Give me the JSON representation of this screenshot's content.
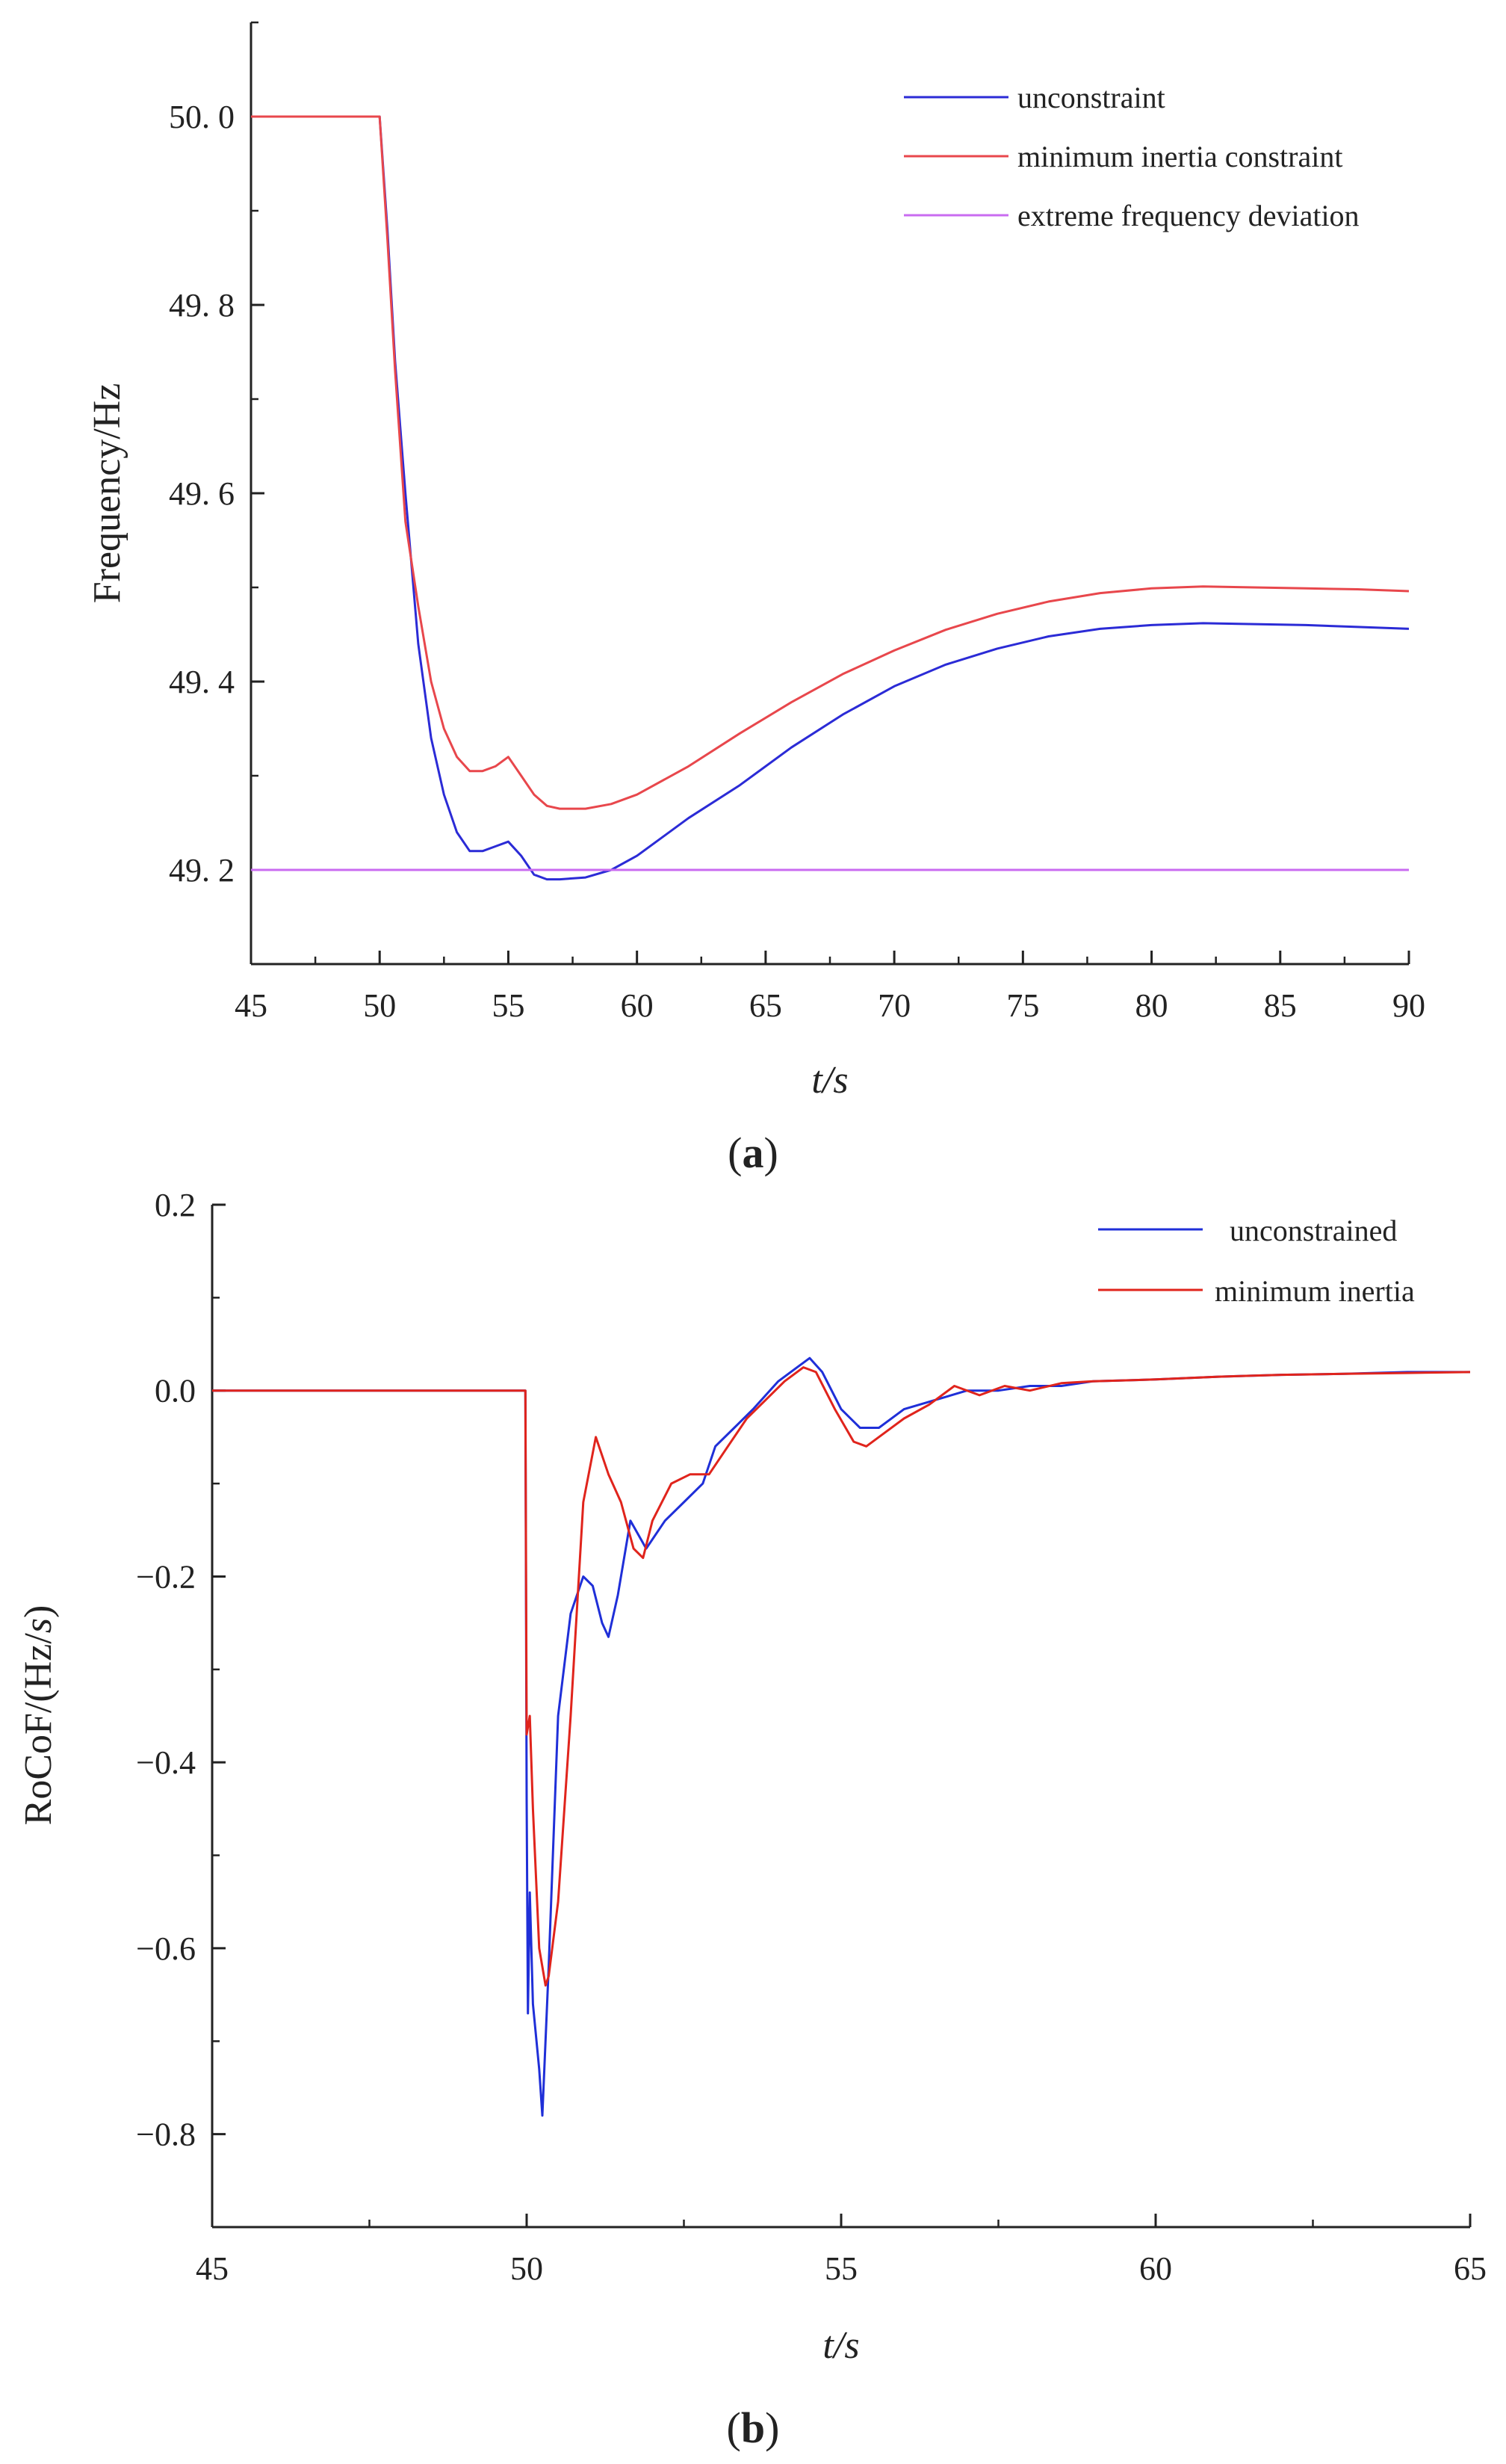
{
  "chart_data": [
    {
      "type": "line",
      "caption": "(a)",
      "caption_letter": "a",
      "xlabel": "t/s",
      "ylabel": "Frequency/Hz",
      "xlim": [
        45,
        90
      ],
      "ylim": [
        49.1,
        50.1
      ],
      "xticks": [
        45,
        50,
        55,
        60,
        65,
        70,
        75,
        80,
        85,
        90
      ],
      "xtick_labels": [
        "45",
        "50",
        "55",
        "60",
        "65",
        "70",
        "75",
        "80",
        "85",
        "90"
      ],
      "yticks": [
        49.2,
        49.4,
        49.6,
        49.8,
        50.0
      ],
      "ytick_labels": [
        "49. 2",
        "49. 4",
        "49. 6",
        "49. 8",
        "50. 0"
      ],
      "legend_position": "top-right",
      "series": [
        {
          "name": "unconstraint",
          "color": "#2b2bd6",
          "x": [
            45,
            50,
            50.3,
            50.6,
            51,
            51.5,
            52,
            52.5,
            53,
            53.5,
            54,
            54.5,
            55,
            55.5,
            56,
            56.5,
            57,
            58,
            59,
            60,
            62,
            64,
            66,
            68,
            70,
            72,
            74,
            76,
            78,
            80,
            82,
            84,
            86,
            88,
            90
          ],
          "y": [
            50.0,
            50.0,
            49.88,
            49.74,
            49.6,
            49.44,
            49.34,
            49.28,
            49.24,
            49.22,
            49.22,
            49.225,
            49.23,
            49.215,
            49.195,
            49.19,
            49.19,
            49.192,
            49.2,
            49.215,
            49.255,
            49.29,
            49.33,
            49.365,
            49.395,
            49.418,
            49.435,
            49.448,
            49.456,
            49.46,
            49.462,
            49.461,
            49.46,
            49.458,
            49.456
          ]
        },
        {
          "name": "minimum inertia constraint",
          "color": "#e8474c",
          "x": [
            45,
            50,
            50.3,
            50.6,
            51,
            51.5,
            52,
            52.5,
            53,
            53.5,
            54,
            54.5,
            55,
            55.5,
            56,
            56.5,
            57,
            58,
            59,
            60,
            62,
            64,
            66,
            68,
            70,
            72,
            74,
            76,
            78,
            80,
            82,
            84,
            86,
            88,
            90
          ],
          "y": [
            50.0,
            50.0,
            49.87,
            49.73,
            49.57,
            49.48,
            49.4,
            49.35,
            49.32,
            49.305,
            49.305,
            49.31,
            49.32,
            49.3,
            49.28,
            49.268,
            49.265,
            49.265,
            49.27,
            49.28,
            49.31,
            49.345,
            49.378,
            49.408,
            49.433,
            49.455,
            49.472,
            49.485,
            49.494,
            49.499,
            49.501,
            49.5,
            49.499,
            49.498,
            49.496
          ]
        },
        {
          "name": "extreme frequency deviation",
          "color": "#c96bf0",
          "x": [
            45,
            90
          ],
          "y": [
            49.2,
            49.2
          ]
        }
      ]
    },
    {
      "type": "line",
      "caption": "(b)",
      "caption_letter": "b",
      "xlabel": "t/s",
      "ylabel": "RoCoF/(Hz/s)",
      "ylabel_prefix": "RoCoF/(Hz/",
      "ylabel_var": "s",
      "ylabel_suffix": ")",
      "xlim": [
        45,
        65
      ],
      "ylim": [
        -0.9,
        0.2
      ],
      "xticks": [
        45,
        50,
        55,
        60,
        65
      ],
      "xtick_labels": [
        "45",
        "50",
        "55",
        "60",
        "65"
      ],
      "yticks": [
        -0.8,
        -0.6,
        -0.4,
        -0.2,
        0.0,
        0.2
      ],
      "ytick_labels": [
        "−0.8",
        "−0.6",
        "−0.4",
        "−0.2",
        "0.0",
        "0.2"
      ],
      "legend_position": "top-right",
      "series": [
        {
          "name": "unconstrained",
          "color": "#1f2fd8",
          "x": [
            45,
            49.98,
            50.0,
            50.02,
            50.05,
            50.1,
            50.2,
            50.25,
            50.35,
            50.5,
            50.7,
            50.9,
            51.05,
            51.2,
            51.3,
            51.45,
            51.65,
            51.9,
            52.2,
            52.5,
            52.8,
            53.0,
            53.3,
            53.6,
            54.0,
            54.3,
            54.5,
            54.7,
            55.0,
            55.3,
            55.6,
            56.0,
            56.5,
            57.0,
            57.5,
            58.0,
            58.5,
            59.0,
            60.0,
            61.0,
            62.0,
            63.0,
            64.0,
            65.0
          ],
          "y": [
            0.0,
            0.0,
            -0.44,
            -0.67,
            -0.54,
            -0.66,
            -0.73,
            -0.78,
            -0.62,
            -0.35,
            -0.24,
            -0.2,
            -0.21,
            -0.25,
            -0.265,
            -0.22,
            -0.14,
            -0.17,
            -0.14,
            -0.12,
            -0.1,
            -0.06,
            -0.04,
            -0.02,
            0.01,
            0.025,
            0.035,
            0.02,
            -0.02,
            -0.04,
            -0.04,
            -0.02,
            -0.01,
            0.0,
            0.0,
            0.005,
            0.005,
            0.01,
            0.012,
            0.015,
            0.017,
            0.018,
            0.02,
            0.02
          ]
        },
        {
          "name": "minimum inertia",
          "color": "#e0241c",
          "x": [
            45,
            49.98,
            50.0,
            50.05,
            50.1,
            50.2,
            50.3,
            50.35,
            50.5,
            50.7,
            50.9,
            51.1,
            51.3,
            51.5,
            51.7,
            51.85,
            52.0,
            52.3,
            52.6,
            52.9,
            53.2,
            53.5,
            53.8,
            54.1,
            54.4,
            54.6,
            54.9,
            55.2,
            55.4,
            55.7,
            56.0,
            56.4,
            56.8,
            57.2,
            57.6,
            58.0,
            58.5,
            59.0,
            60.0,
            61.0,
            62.0,
            63.0,
            64.0,
            65.0
          ],
          "y": [
            0.0,
            0.0,
            -0.37,
            -0.35,
            -0.45,
            -0.6,
            -0.64,
            -0.63,
            -0.55,
            -0.35,
            -0.12,
            -0.05,
            -0.09,
            -0.12,
            -0.17,
            -0.18,
            -0.14,
            -0.1,
            -0.09,
            -0.09,
            -0.06,
            -0.03,
            -0.01,
            0.01,
            0.025,
            0.02,
            -0.02,
            -0.055,
            -0.06,
            -0.045,
            -0.03,
            -0.015,
            0.005,
            -0.005,
            0.005,
            0.0,
            0.008,
            0.01,
            0.012,
            0.015,
            0.017,
            0.018,
            0.019,
            0.02
          ]
        }
      ]
    }
  ]
}
